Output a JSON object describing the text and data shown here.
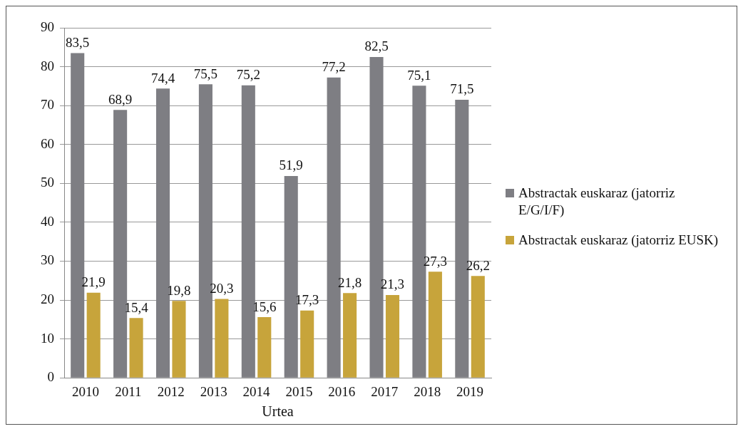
{
  "chart_data": {
    "type": "bar",
    "xlabel": "Urtea",
    "categories": [
      "2010",
      "2011",
      "2012",
      "2013",
      "2014",
      "2015",
      "2016",
      "2017",
      "2018",
      "2019"
    ],
    "series": [
      {
        "name": "Abstractak euskaraz (jatorriz E/G/I/F)",
        "color": "#7e7e83",
        "values": [
          83.5,
          68.9,
          74.4,
          75.5,
          75.2,
          51.9,
          77.2,
          82.5,
          75.1,
          71.5
        ],
        "value_labels": [
          "83,5",
          "68,9",
          "74,4",
          "75,5",
          "75,2",
          "51,9",
          "77,2",
          "82,5",
          "75,1",
          "71,5"
        ]
      },
      {
        "name": "Abstractak euskaraz (jatorriz EUSK)",
        "color": "#c7a43b",
        "values": [
          21.9,
          15.4,
          19.8,
          20.3,
          15.6,
          17.3,
          21.8,
          21.3,
          27.3,
          26.2
        ],
        "value_labels": [
          "21,9",
          "15,4",
          "19,8",
          "20,3",
          "15,6",
          "17,3",
          "21,8",
          "21,3",
          "27,3",
          "26,2"
        ]
      }
    ],
    "ylim": [
      0,
      90
    ],
    "yticks": [
      0,
      10,
      20,
      30,
      40,
      50,
      60,
      70,
      80,
      90
    ],
    "grid": "y",
    "legend": "right"
  }
}
